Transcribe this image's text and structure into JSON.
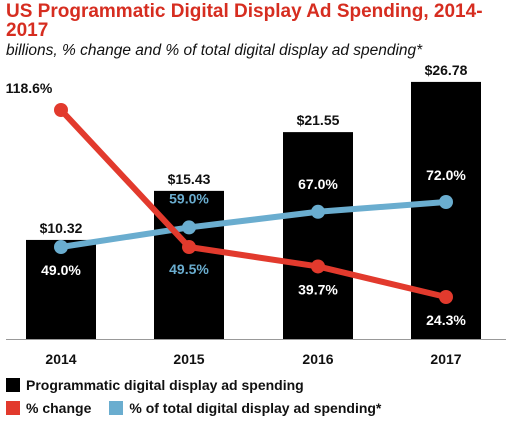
{
  "chart_data": {
    "type": "bar",
    "title": "US Programmatic Digital Display Ad Spending, 2014-2017",
    "subtitle": "billions, % change and % of total digital display ad spending*",
    "categories": [
      "2014",
      "2015",
      "2016",
      "2017"
    ],
    "series": [
      {
        "name": "Programmatic digital display ad spending",
        "kind": "bar",
        "color": "#000000",
        "values": [
          10.32,
          15.43,
          21.55,
          26.78
        ],
        "labels": [
          "$10.32",
          "$15.43",
          "$21.55",
          "$26.78"
        ]
      },
      {
        "name": "% change",
        "kind": "line",
        "color": "#e23a2d",
        "values": [
          118.6,
          49.5,
          39.7,
          24.3
        ],
        "labels": [
          "118.6%",
          "49.5%",
          "39.7%",
          "24.3%"
        ]
      },
      {
        "name": "% of total digital display ad spending*",
        "kind": "line",
        "color": "#6aadcf",
        "values": [
          49.0,
          59.0,
          67.0,
          72.0
        ],
        "labels": [
          "49.0%",
          "59.0%",
          "67.0%",
          "72.0%"
        ]
      }
    ],
    "legend_position": "bottom",
    "grid": false
  }
}
